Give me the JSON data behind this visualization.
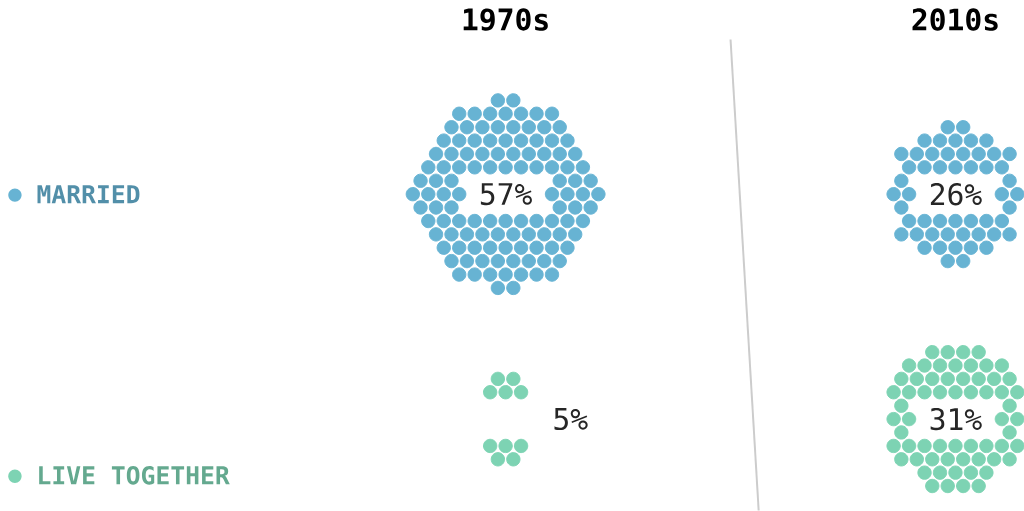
{
  "chart_data": {
    "type": "other",
    "categories": [
      "1970s",
      "2010s"
    ],
    "series": [
      {
        "name": "MARRIED",
        "color": "#67b3d3",
        "values": [
          57,
          26
        ],
        "value_labels": [
          "57%",
          "26%"
        ]
      },
      {
        "name": "LIVE TOGETHER",
        "color": "#7dd3b3",
        "values": [
          5,
          31
        ],
        "value_labels": [
          "5%",
          "31%"
        ]
      }
    ]
  }
}
